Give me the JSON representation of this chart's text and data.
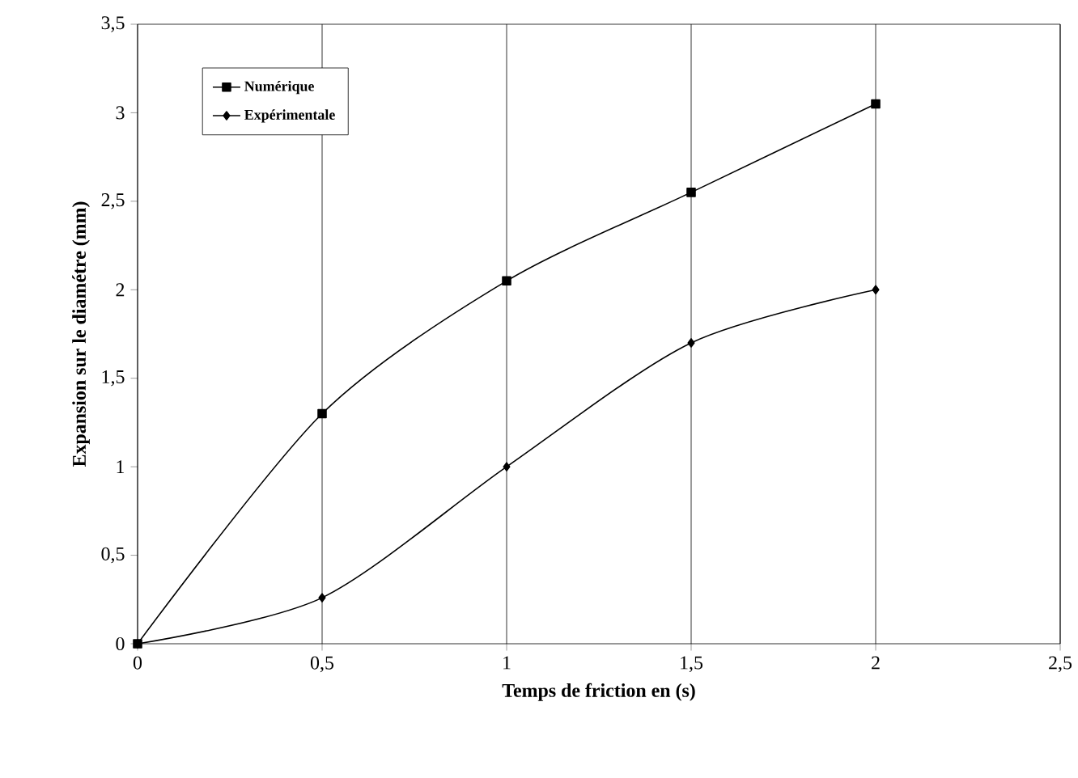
{
  "chart_data": {
    "type": "line",
    "xlabel": "Temps de friction en (s)",
    "ylabel": "Expansion sur le diamétre (mm)",
    "xlim": [
      0,
      2.5
    ],
    "ylim": [
      0,
      3.5
    ],
    "xticks": [
      0,
      {
        "value": 0.5,
        "label": "0,5"
      },
      1,
      {
        "value": 1.5,
        "label": "1,5"
      },
      2,
      {
        "value": 2.5,
        "label": "2,5"
      }
    ],
    "yticks": [
      0,
      {
        "value": 0.5,
        "label": "0,5"
      },
      1,
      {
        "value": 1.5,
        "label": "1,5"
      },
      2,
      {
        "value": 2.5,
        "label": "2,5"
      },
      3,
      {
        "value": 3.5,
        "label": "3,5"
      }
    ],
    "grid": "x",
    "legend": "top left",
    "line_style": "solid",
    "series": [
      {
        "name": "Numérique",
        "color": "#000000",
        "marker": "square",
        "x": [
          0,
          0.5,
          1,
          1.5,
          2
        ],
        "values": [
          0,
          1.3,
          2.05,
          2.55,
          3.05
        ]
      },
      {
        "name": "Expérimentale",
        "color": "#000000",
        "marker": "diamond",
        "x": [
          0,
          0.5,
          1,
          1.5,
          2
        ],
        "values": [
          0,
          0.26,
          1.0,
          1.7,
          2.0
        ]
      }
    ]
  }
}
